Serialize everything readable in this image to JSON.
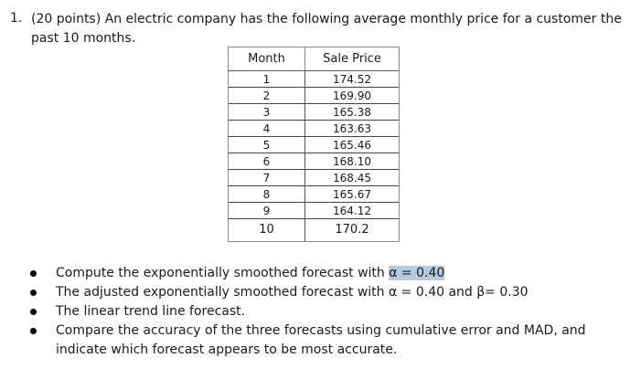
{
  "question": {
    "number": "1.",
    "prompt": "(20 points) An electric company has the following average monthly price for a customer the past 10 months."
  },
  "table": {
    "headers": {
      "month": "Month",
      "price": "Sale Price"
    },
    "rows": [
      {
        "month": "1",
        "price": "174.52"
      },
      {
        "month": "2",
        "price": "169.90"
      },
      {
        "month": "3",
        "price": "165.38"
      },
      {
        "month": "4",
        "price": "163.63"
      },
      {
        "month": "5",
        "price": "165.46"
      },
      {
        "month": "6",
        "price": "168.10"
      },
      {
        "month": "7",
        "price": "168.45"
      },
      {
        "month": "8",
        "price": "165.67"
      },
      {
        "month": "9",
        "price": "164.12"
      },
      {
        "month": "10",
        "price": "170.2"
      }
    ]
  },
  "tasks": {
    "item1_text": "Compute the exponentially smoothed forecast with ",
    "item1_highlight": "α = 0.40",
    "item2": "The adjusted exponentially smoothed forecast with α = 0.40 and β= 0.30",
    "item3": "The linear trend line forecast.",
    "item4": "Compare the accuracy of the three forecasts using cumulative error and MAD, and indicate which forecast appears to be most accurate."
  },
  "colors": {
    "highlight": "#b7cbe0"
  }
}
